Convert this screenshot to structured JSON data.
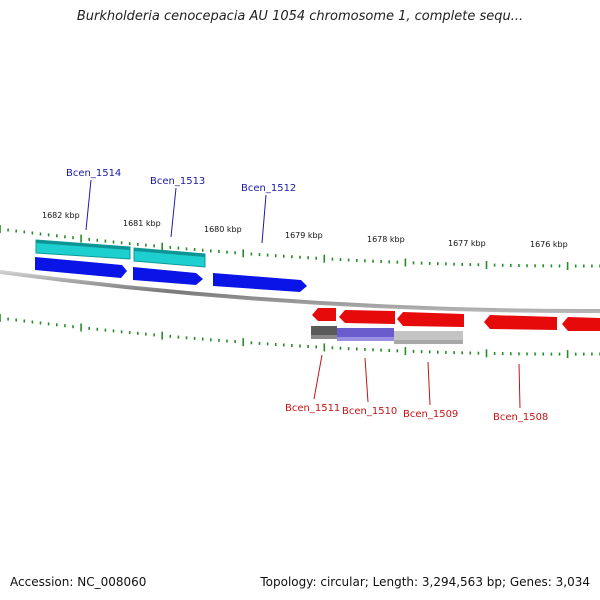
{
  "title": "Burkholderia cenocepacia AU 1054 chromosome 1, complete sequ...",
  "colors": {
    "forward_gene": "#0a14e6",
    "forward_cds": "#1ecfcf",
    "reverse_gene": "#e60a0a",
    "reverse_cds_a": "#555555",
    "reverse_cds_b": "#6a5ccc",
    "reverse_cds_c": "#c4c4c4",
    "forward_label": "#1a1aa8",
    "reverse_label": "#c41414",
    "tick": "#2a8a2a",
    "backbone": "#888888"
  },
  "scale_labels": [
    "1682 kbp",
    "1681 kbp",
    "1680 kbp",
    "1679 kbp",
    "1678 kbp",
    "1677 kbp",
    "1676 kbp"
  ],
  "forward_genes": [
    "Bcen_1514",
    "Bcen_1513",
    "Bcen_1512"
  ],
  "reverse_genes": [
    "Bcen_1511",
    "Bcen_1510",
    "Bcen_1509",
    "Bcen_1508"
  ],
  "footer": {
    "accession": "Accession: NC_008060",
    "summary": "Topology: circular; Length: 3,294,563 bp; Genes: 3,034"
  }
}
